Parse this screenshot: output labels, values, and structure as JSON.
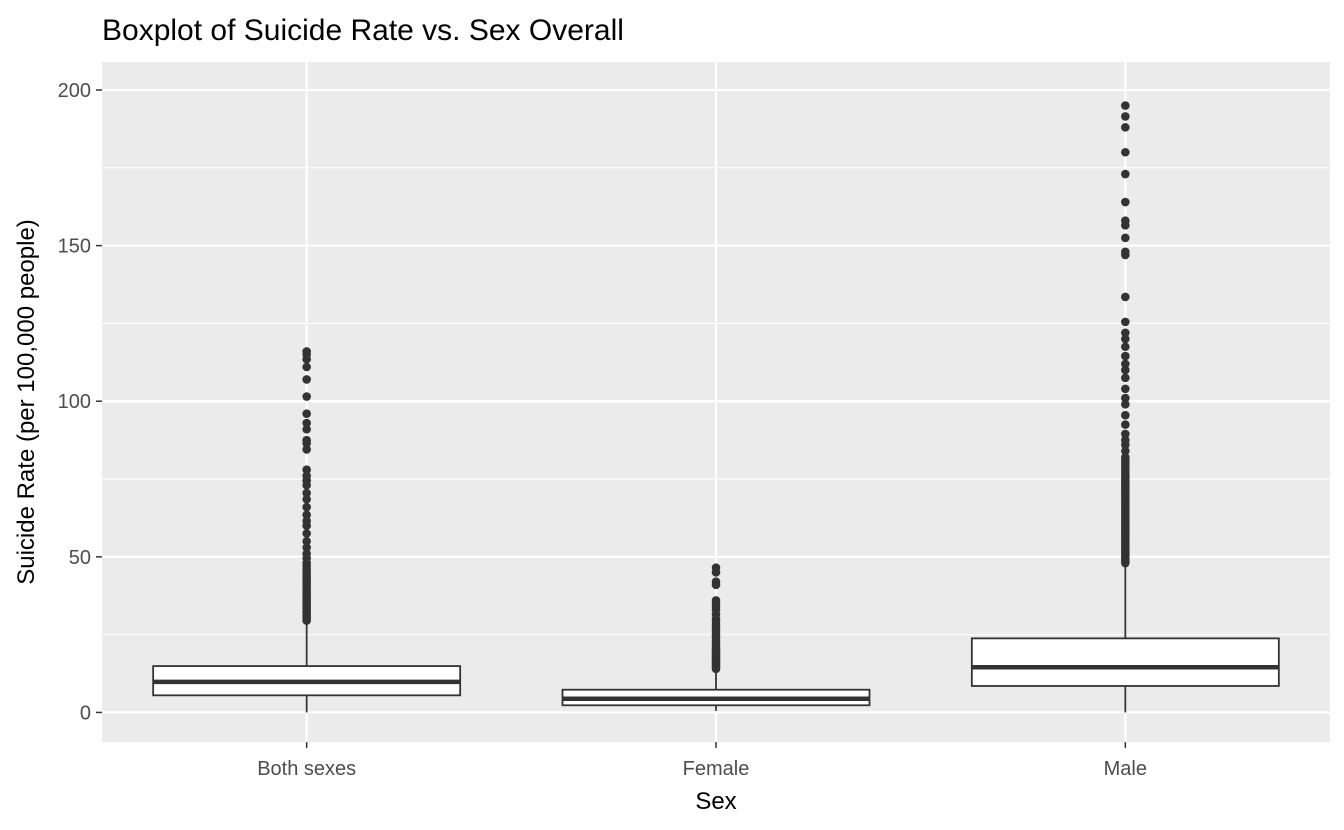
{
  "chart_data": {
    "type": "boxplot",
    "title": "Boxplot of Suicide Rate vs. Sex Overall",
    "xlabel": "Sex",
    "ylabel": "Suicide Rate (per 100,000 people)",
    "ylim": [
      -9.5,
      209
    ],
    "yticks": [
      0,
      50,
      100,
      150,
      200
    ],
    "grid": true,
    "legend": "none",
    "colors": {
      "panel": "#ebebeb",
      "grid": "#ffffff",
      "box_fill": "#ffffff",
      "box_line": "#333333",
      "point": "#333333"
    },
    "categories": [
      "Both sexes",
      "Female",
      "Male"
    ],
    "boxes": [
      {
        "category": "Both sexes",
        "whisker_low": 0,
        "q1": 5.5,
        "median": 9.8,
        "q3": 14.9,
        "whisker_high": 29,
        "outliers": [
          29.5,
          30.2,
          31,
          31.8,
          32.5,
          33.3,
          34,
          34.8,
          35.5,
          36.3,
          37,
          37.8,
          38.6,
          39.4,
          40.2,
          41,
          41.8,
          42.6,
          43.4,
          44.2,
          45,
          46,
          47,
          48,
          49.5,
          51,
          53,
          55,
          57.5,
          60,
          61.5,
          63.5,
          66,
          68.5,
          70.5,
          73,
          74.5,
          76,
          78,
          84.5,
          86.5,
          87.5,
          91,
          93,
          96,
          101.5,
          107,
          111,
          113.5,
          115,
          116
        ]
      },
      {
        "category": "Female",
        "whisker_low": 0.5,
        "q1": 2.3,
        "median": 4.4,
        "q3": 7.3,
        "whisker_high": 13.5,
        "outliers": [
          14,
          14.5,
          15,
          15.5,
          16,
          16.5,
          17,
          17.5,
          18,
          18.5,
          19,
          19.5,
          20,
          20.5,
          21,
          22,
          23,
          24,
          25,
          26,
          27,
          28,
          29,
          30,
          31.5,
          33,
          34,
          35,
          36,
          41,
          42,
          45,
          46.5
        ]
      },
      {
        "category": "Male",
        "whisker_low": 0,
        "q1": 8.5,
        "median": 14.5,
        "q3": 23.8,
        "whisker_high": 47.5,
        "outliers": [
          48,
          48.8,
          49.6,
          50.4,
          51.2,
          52,
          52.8,
          53.6,
          54.4,
          55.2,
          56,
          56.8,
          57.6,
          58.4,
          59.2,
          60,
          60.8,
          61.6,
          62.4,
          63.2,
          64,
          64.8,
          65.6,
          66.4,
          67.2,
          68,
          68.8,
          69.6,
          70.4,
          71.2,
          72,
          72.8,
          73.6,
          74.4,
          75.2,
          76,
          77,
          78,
          79,
          80,
          81,
          82,
          84,
          86,
          87.5,
          89.5,
          92.5,
          95.5,
          99,
          101,
          104,
          107.5,
          110,
          112,
          114.5,
          117.5,
          120,
          122,
          125.5,
          133.5,
          147,
          148,
          152.5,
          156.5,
          158,
          164,
          173,
          180,
          188,
          191.5,
          195
        ]
      }
    ]
  }
}
